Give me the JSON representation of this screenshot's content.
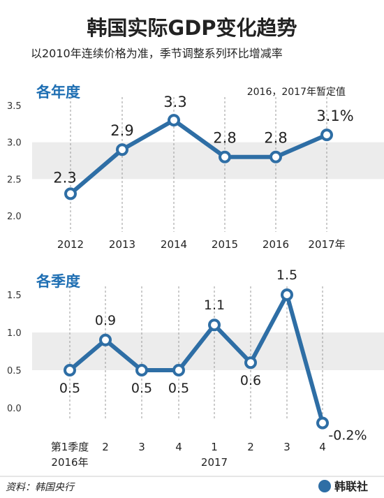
{
  "title": "韩国实际GDP变化趋势",
  "subtitle": "以2010年连续价格为准，季节调整系列环比增减率",
  "source": "资料：韩国央行",
  "logo_text": "韩联社",
  "colors": {
    "line": "#2e6ea5",
    "band": "#ececec",
    "section_title": "#1f6fb3",
    "title": "#222222",
    "guide": "#999999"
  },
  "chart_data": [
    {
      "type": "line",
      "title": "各年度",
      "note": "2016，2017年暂定值",
      "categories": [
        "2012",
        "2013",
        "2014",
        "2015",
        "2016",
        "2017年"
      ],
      "values": [
        2.3,
        2.9,
        3.3,
        2.8,
        2.8,
        3.1
      ],
      "data_labels": [
        "2.3",
        "2.9",
        "3.3",
        "2.8",
        "2.8",
        "3.1%"
      ],
      "yticks": [
        "2.0",
        "2.5",
        "3.0",
        "3.5"
      ],
      "ylim": [
        2.0,
        3.5
      ],
      "grid": "alternating-bands"
    },
    {
      "type": "line",
      "title": "各季度",
      "categories": [
        "第1季度",
        "2",
        "3",
        "4",
        "1",
        "2",
        "3",
        "4"
      ],
      "group_labels": [
        "2016年",
        "2017"
      ],
      "values": [
        0.5,
        0.9,
        0.5,
        0.5,
        1.1,
        0.6,
        1.5,
        -0.2
      ],
      "data_labels": [
        "0.5",
        "0.9",
        "0.5",
        "0.5",
        "1.1",
        "0.6",
        "1.5",
        "-0.2%"
      ],
      "yticks": [
        "0.0",
        "0.5",
        "1.0",
        "1.5"
      ],
      "ylim": [
        0.0,
        1.5
      ],
      "grid": "alternating-bands"
    }
  ]
}
